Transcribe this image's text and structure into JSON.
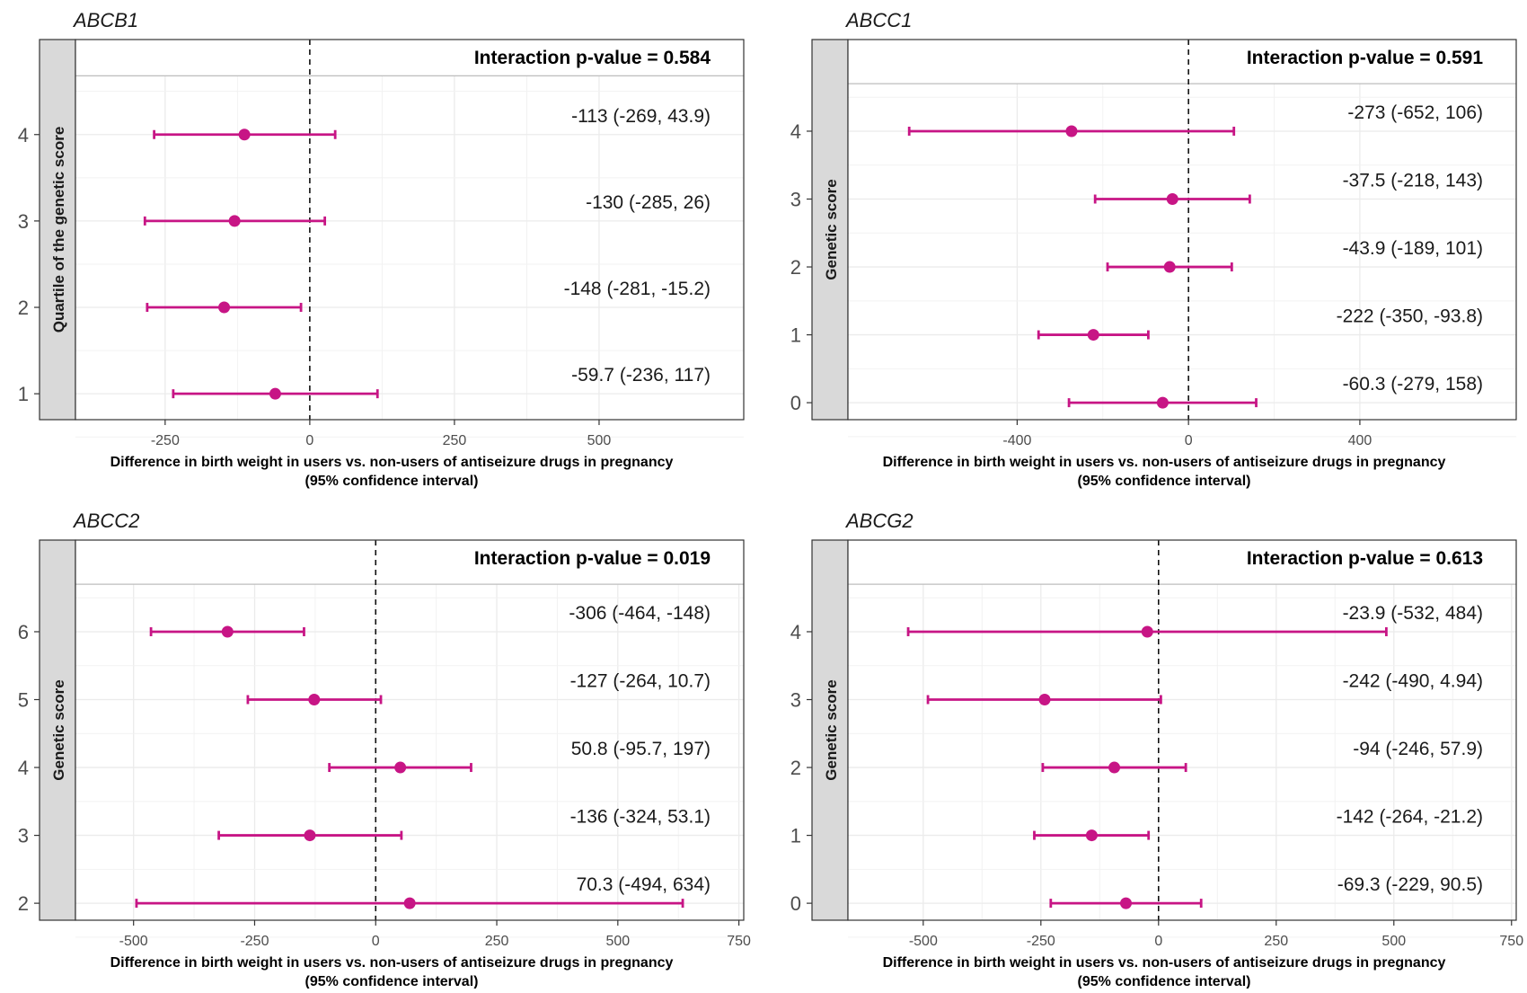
{
  "colors": {
    "marker": "#c71585",
    "strip": "#d9d9d9",
    "grid": "#ebebeb",
    "text": "#1a1a1a"
  },
  "shared": {
    "xlabel_line1": "Difference in birth weight in users vs. non-users of antiseizure drugs in pregnancy",
    "xlabel_line2": "(95% confidence interval)"
  },
  "chart_data": [
    {
      "type": "forest",
      "title": "ABCB1",
      "ylabel": "Quartile of the genetic score",
      "annotation": "Interaction p-value = 0.584",
      "xlim": [
        -405,
        750
      ],
      "xticks": [
        -250,
        0,
        250,
        500
      ],
      "xtick_labels": [
        "-250",
        "0",
        "250",
        "500"
      ],
      "ylim": [
        0.7,
        5.1
      ],
      "yticks": [
        1,
        2,
        3,
        4
      ],
      "header_y": 4.68,
      "reference_line": 0,
      "points": [
        {
          "y": 4,
          "estimate": -113,
          "lower": -269,
          "upper": 43.9,
          "label": "-113 (-269, 43.9)"
        },
        {
          "y": 3,
          "estimate": -130,
          "lower": -285,
          "upper": 26,
          "label": "-130 (-285, 26)"
        },
        {
          "y": 2,
          "estimate": -148,
          "lower": -281,
          "upper": -15.2,
          "label": "-148 (-281, -15.2)"
        },
        {
          "y": 1,
          "estimate": -59.7,
          "lower": -236,
          "upper": 117,
          "label": "-59.7 (-236, 117)"
        }
      ]
    },
    {
      "type": "forest",
      "title": "ABCC1",
      "ylabel": "Genetic score",
      "annotation": "Interaction p-value = 0.591",
      "xlim": [
        -795,
        765
      ],
      "xticks": [
        -400,
        0,
        400
      ],
      "xtick_labels": [
        "-400",
        "0",
        "400"
      ],
      "ylim": [
        -0.25,
        5.35
      ],
      "yticks": [
        0,
        1,
        2,
        3,
        4
      ],
      "header_y": 4.7,
      "reference_line": 0,
      "points": [
        {
          "y": 4,
          "estimate": -273,
          "lower": -652,
          "upper": 106,
          "label": "-273 (-652, 106)"
        },
        {
          "y": 3,
          "estimate": -37.5,
          "lower": -218,
          "upper": 143,
          "label": "-37.5 (-218, 143)"
        },
        {
          "y": 2,
          "estimate": -43.9,
          "lower": -189,
          "upper": 101,
          "label": "-43.9 (-189, 101)"
        },
        {
          "y": 1,
          "estimate": -222,
          "lower": -350,
          "upper": -93.8,
          "label": "-222 (-350, -93.8)"
        },
        {
          "y": 0,
          "estimate": -60.3,
          "lower": -279,
          "upper": 158,
          "label": "-60.3 (-279, 158)"
        }
      ]
    },
    {
      "type": "forest",
      "title": "ABCC2",
      "ylabel": "Genetic score",
      "annotation": "Interaction p-value = 0.019",
      "xlim": [
        -620,
        760
      ],
      "xticks": [
        -500,
        -250,
        0,
        250,
        500,
        750
      ],
      "xtick_labels": [
        "-500",
        "-250",
        "0",
        "250",
        "500",
        "750"
      ],
      "ylim": [
        1.75,
        7.35
      ],
      "yticks": [
        2,
        3,
        4,
        5,
        6
      ],
      "header_y": 6.7,
      "reference_line": 0,
      "points": [
        {
          "y": 6,
          "estimate": -306,
          "lower": -464,
          "upper": -148,
          "label": "-306 (-464, -148)"
        },
        {
          "y": 5,
          "estimate": -127,
          "lower": -264,
          "upper": 10.7,
          "label": "-127 (-264, 10.7)"
        },
        {
          "y": 4,
          "estimate": 50.8,
          "lower": -95.7,
          "upper": 197,
          "label": "50.8 (-95.7, 197)"
        },
        {
          "y": 3,
          "estimate": -136,
          "lower": -324,
          "upper": 53.1,
          "label": "-136 (-324, 53.1)"
        },
        {
          "y": 2,
          "estimate": 70.3,
          "lower": -494,
          "upper": 634,
          "label": "70.3 (-494, 634)"
        }
      ]
    },
    {
      "type": "forest",
      "title": "ABCG2",
      "ylabel": "Genetic score",
      "annotation": "Interaction p-value = 0.613",
      "xlim": [
        -660,
        760
      ],
      "xticks": [
        -500,
        -250,
        0,
        250,
        500,
        750
      ],
      "xtick_labels": [
        "-500",
        "-250",
        "0",
        "250",
        "500",
        "750"
      ],
      "ylim": [
        -0.25,
        5.35
      ],
      "yticks": [
        0,
        1,
        2,
        3,
        4
      ],
      "header_y": 4.7,
      "reference_line": 0,
      "points": [
        {
          "y": 4,
          "estimate": -23.9,
          "lower": -532,
          "upper": 484,
          "label": "-23.9 (-532, 484)"
        },
        {
          "y": 3,
          "estimate": -242,
          "lower": -490,
          "upper": 4.94,
          "label": "-242 (-490, 4.94)"
        },
        {
          "y": 2,
          "estimate": -94,
          "lower": -246,
          "upper": 57.9,
          "label": "-94 (-246, 57.9)"
        },
        {
          "y": 1,
          "estimate": -142,
          "lower": -264,
          "upper": -21.2,
          "label": "-142 (-264, -21.2)"
        },
        {
          "y": 0,
          "estimate": -69.3,
          "lower": -229,
          "upper": 90.5,
          "label": "-69.3 (-229, 90.5)"
        }
      ]
    }
  ]
}
